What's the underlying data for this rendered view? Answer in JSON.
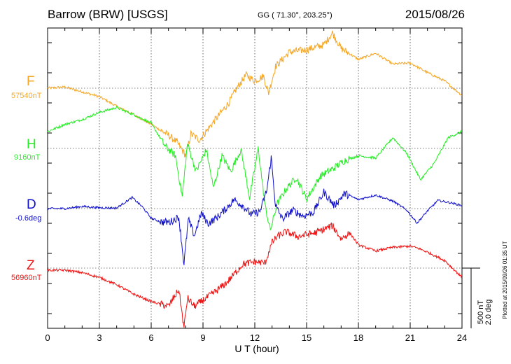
{
  "header": {
    "station": "Barrow (BRW)  [USGS]",
    "coords": "GG ( 71.30°, 203.25°)",
    "date": "2015/08/26"
  },
  "scale": {
    "nt": "500 nT",
    "deg": "2.0 deg"
  },
  "plotted": "Plotted at 2015/09/26 01:35 UT",
  "chart_data": {
    "type": "line",
    "xlabel": "U T (hour)",
    "xlim": [
      0,
      24
    ],
    "xticks": [
      0,
      3,
      6,
      9,
      12,
      15,
      18,
      21,
      24
    ],
    "xtick_labels": [
      "0",
      "3",
      "6",
      "9",
      "12",
      "15",
      "18",
      "21",
      "24"
    ],
    "grid": true,
    "series": [
      {
        "name": "F",
        "baseline": "57540nT",
        "color": "#f5a623",
        "x": [
          0,
          1,
          2,
          3,
          4,
          5,
          6,
          7,
          7.5,
          8,
          8.3,
          8.8,
          9.5,
          10.5,
          11,
          11.5,
          12,
          12.5,
          12.8,
          13.2,
          14,
          15,
          16,
          16.5,
          17,
          18,
          19,
          20,
          21,
          22,
          23,
          24
        ],
        "y": [
          0,
          10,
          -30,
          -70,
          -150,
          -220,
          -300,
          -390,
          -450,
          -560,
          -380,
          -430,
          -300,
          -120,
          10,
          110,
          60,
          100,
          -40,
          180,
          300,
          320,
          360,
          460,
          330,
          240,
          290,
          200,
          210,
          130,
          60,
          -60
        ]
      },
      {
        "name": "H",
        "baseline": "9160nT",
        "color": "#22ee22",
        "x": [
          0,
          1,
          2,
          3,
          4,
          5,
          6,
          6.8,
          7.4,
          7.8,
          8.1,
          8.6,
          9.2,
          9.6,
          10.1,
          10.6,
          11.2,
          11.7,
          12.2,
          12.6,
          12.9,
          13.3,
          13.8,
          14.4,
          15,
          15.8,
          16.5,
          17.2,
          18,
          19,
          20,
          20.8,
          21.6,
          22.4,
          23.2,
          24
        ],
        "y": [
          0,
          60,
          100,
          160,
          200,
          140,
          70,
          -120,
          -200,
          -540,
          -100,
          -330,
          -150,
          -470,
          -200,
          -330,
          -150,
          -550,
          -140,
          -620,
          -820,
          -600,
          -480,
          -380,
          -560,
          -370,
          -310,
          -240,
          -200,
          -220,
          -50,
          -180,
          -400,
          -260,
          -50,
          0
        ]
      },
      {
        "name": "D",
        "baseline": "-0.6deg",
        "color": "#1010cc",
        "x": [
          0,
          1,
          2,
          3,
          4,
          4.9,
          5.5,
          6,
          6.6,
          7.1,
          7.6,
          7.9,
          8.15,
          8.5,
          8.9,
          9.3,
          9.8,
          10.3,
          10.8,
          11.3,
          11.8,
          12.3,
          12.7,
          12.95,
          13.2,
          13.6,
          14.2,
          14.8,
          15.4,
          16,
          16.6,
          17.2,
          18,
          19,
          20,
          20.8,
          21.4,
          22,
          22.6,
          23.3,
          24
        ],
        "y": [
          0,
          0,
          0.07,
          0.03,
          0.02,
          0.37,
          0.05,
          -0.32,
          -0.45,
          -0.44,
          -0.28,
          -1.85,
          -0.35,
          -0.9,
          -0.15,
          -0.5,
          -0.3,
          -0.02,
          0.3,
          0.1,
          -0.2,
          -0.1,
          0.62,
          1.7,
          0.1,
          -0.35,
          -0.05,
          -0.25,
          -0.12,
          0.55,
          0.1,
          0.5,
          0.3,
          0.45,
          0.25,
          -0.05,
          -0.48,
          -0.08,
          0.27,
          0.2,
          0.1
        ]
      },
      {
        "name": "Z",
        "baseline": "56960nT",
        "color": "#ee1111",
        "x": [
          0,
          1,
          2,
          3,
          4,
          5,
          6,
          7,
          7.6,
          7.9,
          8.1,
          8.5,
          9,
          9.7,
          10.4,
          11.3,
          12,
          12.6,
          13,
          13.3,
          13.8,
          14.5,
          15.5,
          16,
          16.5,
          17,
          17.5,
          18,
          19,
          20,
          21,
          21.5,
          22,
          23,
          24
        ],
        "y": [
          0,
          0,
          -20,
          -60,
          -120,
          -200,
          -260,
          -300,
          -160,
          -480,
          -230,
          -300,
          -250,
          -180,
          -100,
          50,
          70,
          60,
          230,
          280,
          320,
          280,
          310,
          340,
          370,
          260,
          310,
          210,
          160,
          190,
          200,
          180,
          150,
          80,
          -60
        ]
      }
    ]
  }
}
